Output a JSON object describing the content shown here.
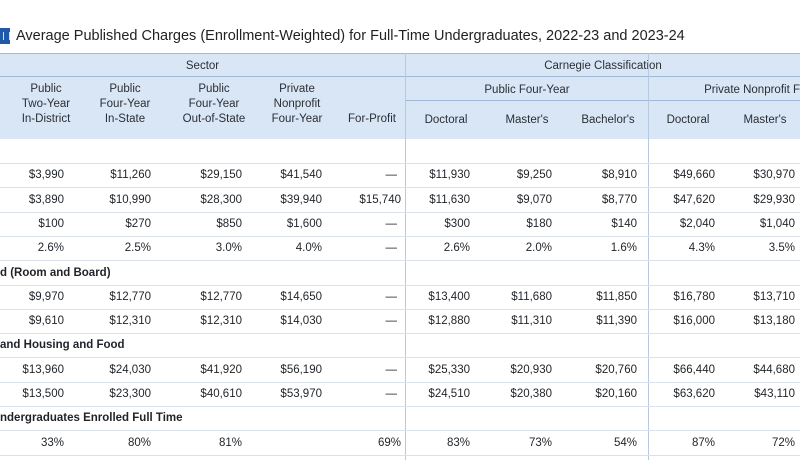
{
  "title": "Average Published Charges (Enrollment-Weighted) for Full-Time Undergraduates, 2022-23 and 2023-24",
  "header": {
    "sector_label": "Sector",
    "carnegie_label": "Carnegie Classification",
    "public_four_year_label": "Public Four-Year",
    "private_nonprofit_label": "Private Nonprofit F",
    "columns": [
      {
        "line1": "Public",
        "line2": "Two-Year",
        "line3": "In-District"
      },
      {
        "line1": "Public",
        "line2": "Four-Year",
        "line3": "In-State"
      },
      {
        "line1": "Public",
        "line2": "Four-Year",
        "line3": "Out-of-State"
      },
      {
        "line1": "Private",
        "line2": "Nonprofit",
        "line3": "Four-Year"
      },
      {
        "line1": "",
        "line2": "",
        "line3": "For-Profit"
      },
      {
        "line1": "",
        "line2": "",
        "line3": "Doctoral"
      },
      {
        "line1": "",
        "line2": "",
        "line3": "Master's"
      },
      {
        "line1": "",
        "line2": "",
        "line3": "Bachelor's"
      },
      {
        "line1": "",
        "line2": "",
        "line3": "Doctoral"
      },
      {
        "line1": "",
        "line2": "",
        "line3": "Master's"
      }
    ]
  },
  "rows": [
    {
      "kind": "blank"
    },
    {
      "kind": "data",
      "values": [
        "$3,990",
        "$11,260",
        "$29,150",
        "$41,540",
        "—",
        "$11,930",
        "$9,250",
        "$8,910",
        "$49,660",
        "$30,970"
      ]
    },
    {
      "kind": "data",
      "values": [
        "$3,890",
        "$10,990",
        "$28,300",
        "$39,940",
        "$15,740",
        "$11,630",
        "$9,070",
        "$8,770",
        "$47,620",
        "$29,930"
      ]
    },
    {
      "kind": "data",
      "values": [
        "$100",
        "$270",
        "$850",
        "$1,600",
        "—",
        "$300",
        "$180",
        "$140",
        "$2,040",
        "$1,040"
      ]
    },
    {
      "kind": "data",
      "values": [
        "2.6%",
        "2.5%",
        "3.0%",
        "4.0%",
        "—",
        "2.6%",
        "2.0%",
        "1.6%",
        "4.3%",
        "3.5%"
      ]
    },
    {
      "kind": "section",
      "label": "d (Room and Board)"
    },
    {
      "kind": "data",
      "values": [
        "$9,970",
        "$12,770",
        "$12,770",
        "$14,650",
        "—",
        "$13,400",
        "$11,680",
        "$11,850",
        "$16,780",
        "$13,710"
      ]
    },
    {
      "kind": "data",
      "values": [
        "$9,610",
        "$12,310",
        "$12,310",
        "$14,030",
        "—",
        "$12,880",
        "$11,310",
        "$11,390",
        "$16,000",
        "$13,180"
      ]
    },
    {
      "kind": "section",
      "label": "and Housing and Food"
    },
    {
      "kind": "data",
      "values": [
        "$13,960",
        "$24,030",
        "$41,920",
        "$56,190",
        "—",
        "$25,330",
        "$20,930",
        "$20,760",
        "$66,440",
        "$44,680"
      ]
    },
    {
      "kind": "data",
      "values": [
        "$13,500",
        "$23,300",
        "$40,610",
        "$53,970",
        "—",
        "$24,510",
        "$20,380",
        "$20,160",
        "$63,620",
        "$43,110"
      ]
    },
    {
      "kind": "section",
      "label": "ndergraduates Enrolled Full Time"
    },
    {
      "kind": "data",
      "values": [
        "33%",
        "80%",
        "81%",
        "69%",
        "83%",
        "73%",
        "54%",
        "87%",
        "72%"
      ],
      "skip_col": 3
    }
  ]
}
